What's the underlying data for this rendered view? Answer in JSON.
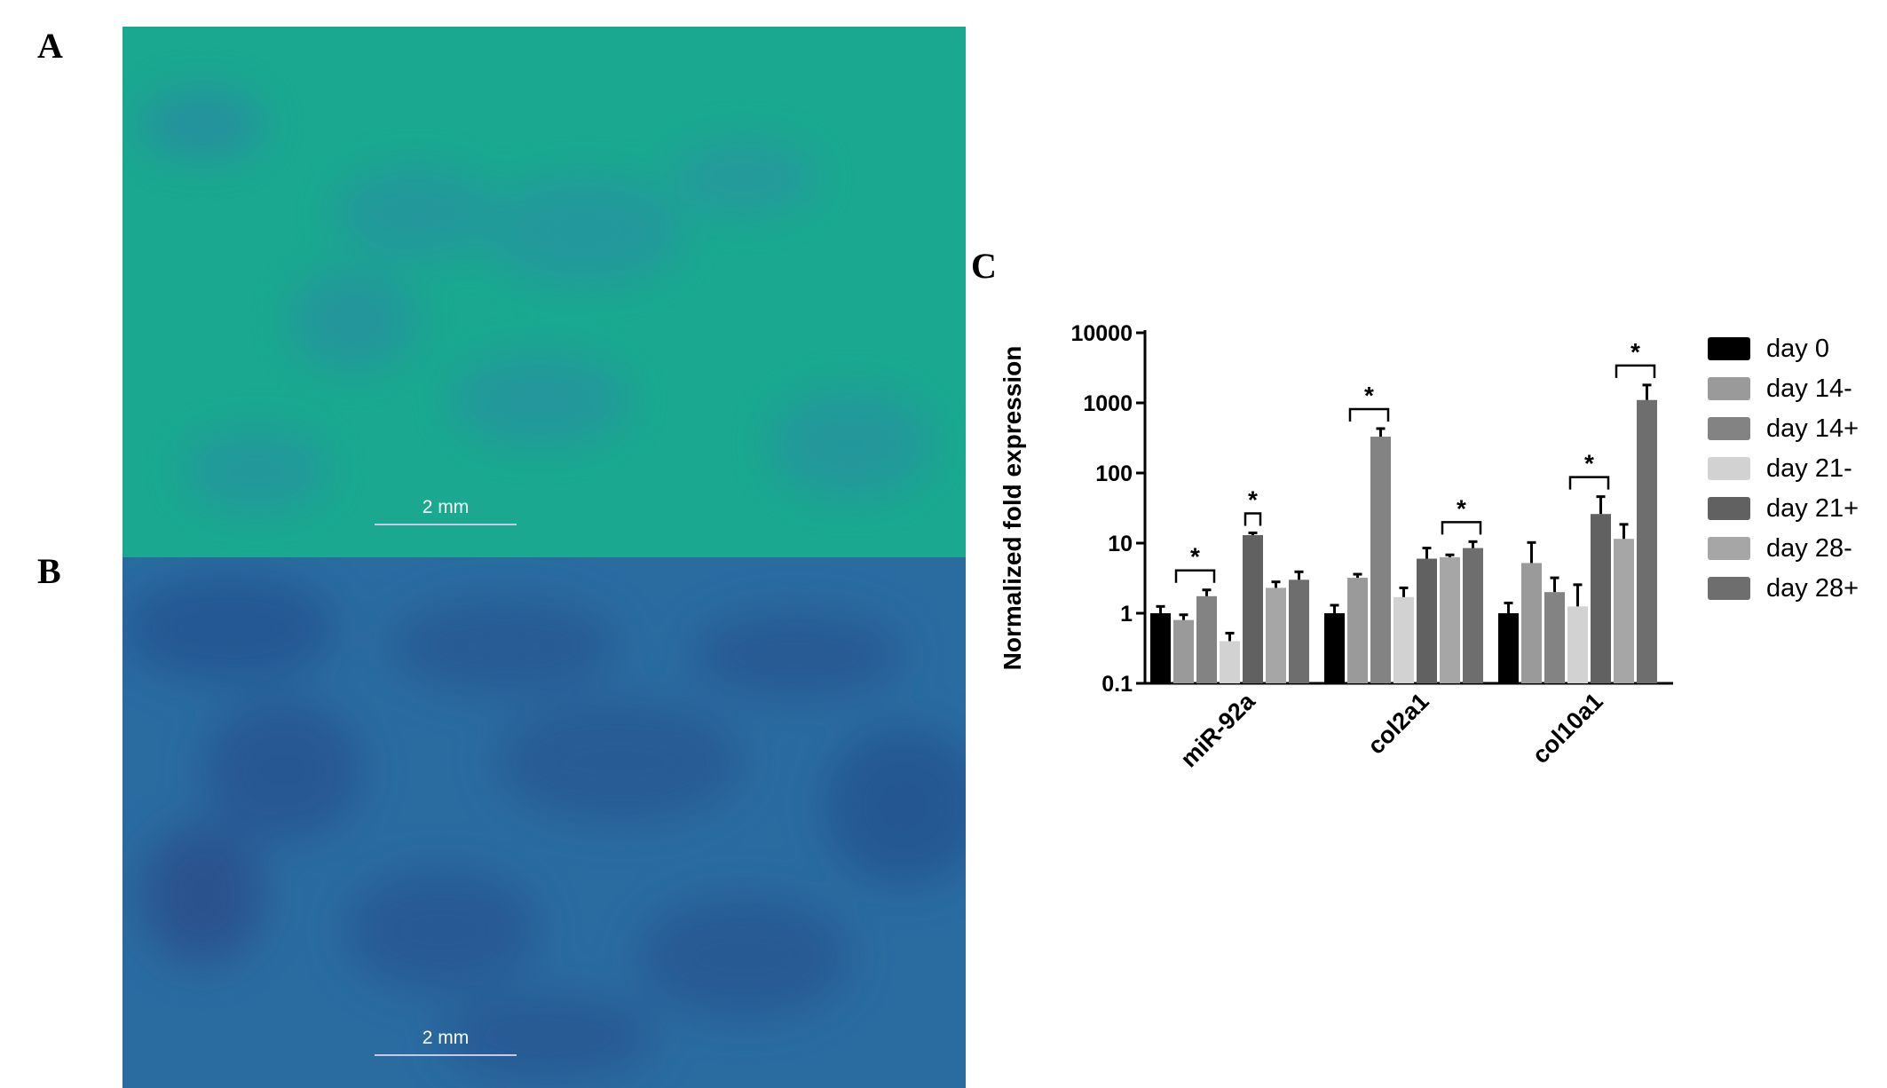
{
  "panels": {
    "a": {
      "letter": "A",
      "scalebar": "2 mm"
    },
    "b": {
      "letter": "B",
      "scalebar": "2 mm"
    },
    "c": {
      "letter": "C"
    }
  },
  "colors": {
    "panel_a_stain": "#1aa890",
    "panel_b_stain": "#2a6ca0"
  },
  "chart_data": {
    "type": "bar",
    "ylabel": "Normalized fold expression",
    "xlabel": "",
    "yscale": "log",
    "ylim": [
      0.1,
      10000
    ],
    "yticks": [
      "0.1",
      "1",
      "10",
      "100",
      "1000",
      "10000"
    ],
    "ytick_values": [
      0.1,
      1,
      10,
      100,
      1000,
      10000
    ],
    "categories": [
      "miR-92a",
      "col2a1",
      "col10a1"
    ],
    "legend_position": "right",
    "series": [
      {
        "name": "day 0",
        "color": "#000000",
        "values": [
          1.0,
          1.0,
          1.0
        ],
        "error": [
          0.25,
          0.3,
          0.4
        ]
      },
      {
        "name": "day 14-",
        "color": "#9a9a9a",
        "values": [
          0.8,
          3.2,
          5.2
        ],
        "error": [
          0.15,
          0.4,
          5.0
        ]
      },
      {
        "name": "day 14+",
        "color": "#838383",
        "values": [
          1.75,
          330,
          2.0
        ],
        "error": [
          0.4,
          100,
          1.2
        ]
      },
      {
        "name": "day 21-",
        "color": "#d2d2d2",
        "values": [
          0.4,
          1.7,
          1.25
        ],
        "error": [
          0.12,
          0.6,
          1.3
        ]
      },
      {
        "name": "day 21+",
        "color": "#616161",
        "values": [
          13,
          6.0,
          26
        ],
        "error": [
          1.0,
          2.5,
          20
        ]
      },
      {
        "name": "day 28-",
        "color": "#a6a6a6",
        "values": [
          2.3,
          6.3,
          11.5
        ],
        "error": [
          0.5,
          0.5,
          7
        ]
      },
      {
        "name": "day 28+",
        "color": "#6e6e6e",
        "values": [
          3.0,
          8.5,
          1100
        ],
        "error": [
          0.9,
          2.0,
          700
        ]
      }
    ],
    "significance": [
      {
        "category": 0,
        "from": 1,
        "to": 2,
        "label": "*"
      },
      {
        "category": 0,
        "from": 4,
        "to": 4,
        "label": "*"
      },
      {
        "category": 1,
        "from": 1,
        "to": 2,
        "label": "*"
      },
      {
        "category": 1,
        "from": 5,
        "to": 6,
        "label": "*"
      },
      {
        "category": 2,
        "from": 3,
        "to": 4,
        "label": "*"
      },
      {
        "category": 2,
        "from": 5,
        "to": 6,
        "label": "*"
      }
    ]
  }
}
